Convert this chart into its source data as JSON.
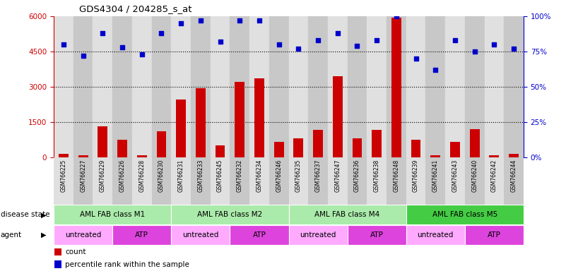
{
  "title": "GDS4304 / 204285_s_at",
  "samples": [
    "GSM766225",
    "GSM766227",
    "GSM766229",
    "GSM766226",
    "GSM766228",
    "GSM766230",
    "GSM766231",
    "GSM766233",
    "GSM766245",
    "GSM766232",
    "GSM766234",
    "GSM766246",
    "GSM766235",
    "GSM766237",
    "GSM766247",
    "GSM766236",
    "GSM766238",
    "GSM766248",
    "GSM766239",
    "GSM766241",
    "GSM766243",
    "GSM766240",
    "GSM766242",
    "GSM766244"
  ],
  "counts": [
    150,
    80,
    1300,
    750,
    80,
    1100,
    2450,
    2950,
    500,
    3200,
    3350,
    650,
    800,
    1150,
    3450,
    800,
    1150,
    5950,
    750,
    70,
    650,
    1200,
    80,
    150
  ],
  "percentile": [
    80,
    72,
    88,
    78,
    73,
    88,
    95,
    97,
    82,
    97,
    97,
    80,
    77,
    83,
    88,
    79,
    83,
    100,
    70,
    62,
    83,
    75,
    80,
    77
  ],
  "ylim_left": [
    0,
    6000
  ],
  "yticks_left": [
    0,
    1500,
    3000,
    4500,
    6000
  ],
  "ylim_right": [
    0,
    100
  ],
  "yticks_right": [
    0,
    25,
    50,
    75,
    100
  ],
  "disease_groups": [
    {
      "label": "AML FAB class M1",
      "start": 0,
      "end": 5,
      "color": "#aaeaaa"
    },
    {
      "label": "AML FAB class M2",
      "start": 6,
      "end": 11,
      "color": "#aaeaaa"
    },
    {
      "label": "AML FAB class M4",
      "start": 12,
      "end": 17,
      "color": "#aaeaaa"
    },
    {
      "label": "AML FAB class M5",
      "start": 18,
      "end": 23,
      "color": "#44cc44"
    }
  ],
  "agent_groups": [
    {
      "label": "untreated",
      "start": 0,
      "end": 2,
      "color": "#ffaaff"
    },
    {
      "label": "ATP",
      "start": 3,
      "end": 5,
      "color": "#dd44dd"
    },
    {
      "label": "untreated",
      "start": 6,
      "end": 8,
      "color": "#ffaaff"
    },
    {
      "label": "ATP",
      "start": 9,
      "end": 11,
      "color": "#dd44dd"
    },
    {
      "label": "untreated",
      "start": 12,
      "end": 14,
      "color": "#ffaaff"
    },
    {
      "label": "ATP",
      "start": 15,
      "end": 17,
      "color": "#dd44dd"
    },
    {
      "label": "untreated",
      "start": 18,
      "end": 20,
      "color": "#ffaaff"
    },
    {
      "label": "ATP",
      "start": 21,
      "end": 23,
      "color": "#dd44dd"
    }
  ],
  "bar_color": "#cc0000",
  "scatter_color": "#0000cc",
  "background_color": "#ffffff",
  "grid_color": "#000000",
  "tick_label_color_left": "#cc0000",
  "tick_label_color_right": "#0000cc",
  "col_colors": [
    "#e0e0e0",
    "#c8c8c8"
  ]
}
